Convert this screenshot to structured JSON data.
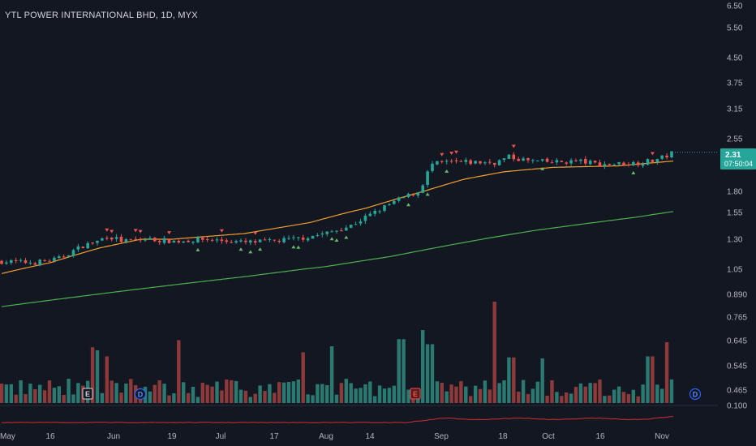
{
  "header": {
    "symbol_title": "YTL POWER INTERNATIONAL BHD, 1D, MYX"
  },
  "colors": {
    "background": "#131722",
    "up": "#26a69a",
    "down": "#ef5350",
    "volume_up": "#2a7a72",
    "volume_down": "#8e3a3a",
    "ma_fast": "#f0a030",
    "ma_slow": "#4caf50",
    "indicator": "#d32f2f",
    "signal_up": "#66bb6a",
    "signal_down": "#ef5350",
    "last_price_badge": "#26a69a",
    "dividend_marker": "#2962ff"
  },
  "chart_data": {
    "type": "candlestick",
    "symbol": "YTL POWER INTERNATIONAL BHD",
    "interval": "1D",
    "exchange": "MYX",
    "price_axis": {
      "scale": "log",
      "ticks": [
        "6.50",
        "5.50",
        "4.50",
        "3.75",
        "3.15",
        "2.55",
        "1.80",
        "1.55",
        "1.30",
        "1.05",
        "0.890",
        "0.765",
        "0.645",
        "0.545",
        "0.465",
        "0.100"
      ],
      "tick_values": [
        6.5,
        5.5,
        4.5,
        3.75,
        3.15,
        2.55,
        1.8,
        1.55,
        1.3,
        1.05,
        0.89,
        0.765,
        0.645,
        0.545,
        0.465,
        0.1
      ]
    },
    "time_axis": {
      "ticks": [
        "May",
        "16",
        "Jun",
        "19",
        "Jul",
        "17",
        "Aug",
        "14",
        "Sep",
        "18",
        "Oct",
        "16",
        "Nov"
      ]
    },
    "last_price": {
      "value": "2.31",
      "countdown": "07:50:04"
    },
    "events": [
      {
        "type": "earnings",
        "label": "E",
        "time": "May 30"
      },
      {
        "type": "dividend",
        "label": "D",
        "time": "Jun 9"
      },
      {
        "type": "earnings",
        "label": "E",
        "time": "Aug 28"
      },
      {
        "type": "dividend",
        "label": "D",
        "time": "Nov 13"
      }
    ],
    "series": [
      {
        "name": "ma_fast",
        "kind": "line",
        "anchors": [
          [
            0,
            1.02
          ],
          [
            60,
            1.1
          ],
          [
            120,
            1.22
          ],
          [
            172,
            1.3
          ],
          [
            210,
            1.3
          ],
          [
            300,
            1.35
          ],
          [
            380,
            1.45
          ],
          [
            450,
            1.6
          ],
          [
            520,
            1.8
          ],
          [
            570,
            1.95
          ],
          [
            620,
            2.05
          ],
          [
            680,
            2.11
          ],
          [
            760,
            2.13
          ],
          [
            828,
            2.2
          ]
        ]
      },
      {
        "name": "ma_slow",
        "kind": "line",
        "anchors": [
          [
            0,
            0.82
          ],
          [
            100,
            0.88
          ],
          [
            200,
            0.94
          ],
          [
            300,
            1.0
          ],
          [
            400,
            1.07
          ],
          [
            480,
            1.15
          ],
          [
            540,
            1.23
          ],
          [
            600,
            1.31
          ],
          [
            660,
            1.38
          ],
          [
            720,
            1.44
          ],
          [
            780,
            1.5
          ],
          [
            828,
            1.56
          ]
        ]
      },
      {
        "name": "price",
        "kind": "close",
        "anchors": [
          [
            0,
            1.11
          ],
          [
            40,
            1.1
          ],
          [
            70,
            1.13
          ],
          [
            100,
            1.24
          ],
          [
            118,
            1.28
          ],
          [
            130,
            1.33
          ],
          [
            150,
            1.28
          ],
          [
            180,
            1.3
          ],
          [
            215,
            1.28
          ],
          [
            250,
            1.3
          ],
          [
            300,
            1.27
          ],
          [
            330,
            1.28
          ],
          [
            360,
            1.3
          ],
          [
            400,
            1.35
          ],
          [
            430,
            1.42
          ],
          [
            460,
            1.55
          ],
          [
            490,
            1.7
          ],
          [
            515,
            1.8
          ],
          [
            530,
            2.15
          ],
          [
            550,
            2.18
          ],
          [
            580,
            2.18
          ],
          [
            610,
            2.18
          ],
          [
            625,
            2.26
          ],
          [
            650,
            2.2
          ],
          [
            680,
            2.18
          ],
          [
            710,
            2.2
          ],
          [
            740,
            2.15
          ],
          [
            780,
            2.17
          ],
          [
            800,
            2.2
          ],
          [
            815,
            2.25
          ],
          [
            828,
            2.33
          ]
        ]
      },
      {
        "name": "volume",
        "kind": "volume",
        "spikes": [
          [
            115,
            0.55
          ],
          [
            120,
            0.52
          ],
          [
            130,
            0.46
          ],
          [
            217,
            0.62
          ],
          [
            370,
            0.5
          ],
          [
            407,
            0.56
          ],
          [
            493,
            0.63
          ],
          [
            517,
            0.72
          ],
          [
            523,
            0.65
          ],
          [
            528,
            0.58
          ],
          [
            609,
            1.0
          ],
          [
            628,
            0.45
          ],
          [
            668,
            0.44
          ],
          [
            800,
            0.46
          ],
          [
            822,
            0.6
          ]
        ]
      }
    ]
  }
}
